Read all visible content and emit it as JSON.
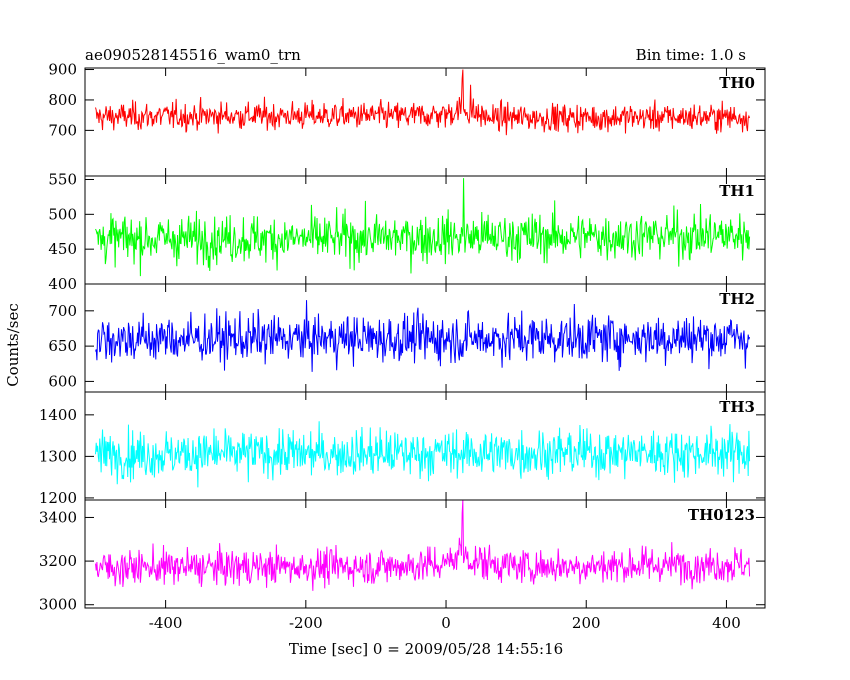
{
  "header": {
    "title": "ae090528145516_wam0_trn",
    "bin_time": "Bin time: 1.0 s"
  },
  "chart_data": {
    "type": "line",
    "title": "ae090528145516_wam0_trn",
    "ylabel": "Counts/sec",
    "xlabel": "Time [sec] 0 = 2009/05/28 14:55:16",
    "xlim": [
      -515,
      455
    ],
    "x_start": -500,
    "x_end": 433,
    "x_step": 1,
    "x_ticks": [
      -400,
      -200,
      0,
      200,
      400
    ],
    "panels": [
      {
        "name": "TH0",
        "color": "#ff0000",
        "ylim": [
          550,
          905
        ],
        "yticks": [
          700,
          800,
          900
        ],
        "profile": [
          [
            -500,
            745
          ],
          [
            -300,
            748
          ],
          [
            -50,
            748
          ],
          [
            0,
            752
          ],
          [
            20,
            770
          ],
          [
            35,
            760
          ],
          [
            60,
            742
          ],
          [
            200,
            742
          ],
          [
            433,
            745
          ]
        ],
        "noise_sd": 32,
        "spikes": [
          [
            24,
            900
          ],
          [
            23,
            870
          ],
          [
            35,
            850
          ]
        ]
      },
      {
        "name": "TH1",
        "color": "#00ff00",
        "ylim": [
          400,
          555
        ],
        "yticks": [
          400,
          450,
          500,
          550
        ],
        "profile": [
          [
            -500,
            465
          ],
          [
            -200,
            465
          ],
          [
            100,
            468
          ],
          [
            433,
            470
          ]
        ],
        "noise_sd": 24,
        "spikes": [
          [
            25,
            552
          ]
        ]
      },
      {
        "name": "TH2",
        "color": "#0000ff",
        "ylim": [
          585,
          738
        ],
        "yticks": [
          600,
          650,
          700
        ],
        "profile": [
          [
            -500,
            660
          ],
          [
            433,
            662
          ]
        ],
        "noise_sd": 24,
        "spikes": []
      },
      {
        "name": "TH3",
        "color": "#00ffff",
        "ylim": [
          1195,
          1455
        ],
        "yticks": [
          1200,
          1300,
          1400
        ],
        "profile": [
          [
            -500,
            1305
          ],
          [
            433,
            1310
          ]
        ],
        "noise_sd": 40,
        "spikes": []
      },
      {
        "name": "TH0123",
        "color": "#ff00ff",
        "ylim": [
          2985,
          3480
        ],
        "yticks": [
          3000,
          3200,
          3400
        ],
        "profile": [
          [
            -500,
            3170
          ],
          [
            -100,
            3175
          ],
          [
            0,
            3185
          ],
          [
            20,
            3240
          ],
          [
            40,
            3200
          ],
          [
            100,
            3175
          ],
          [
            433,
            3185
          ]
        ],
        "noise_sd": 58,
        "spikes": [
          [
            24,
            3480
          ],
          [
            23,
            3420
          ]
        ]
      }
    ]
  }
}
